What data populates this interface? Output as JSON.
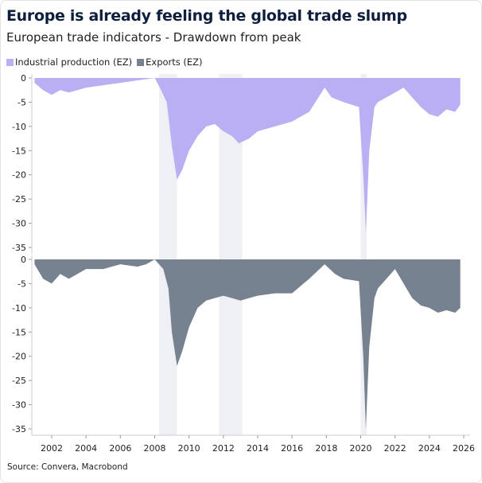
{
  "chart_data": {
    "type": "area",
    "title": "Europe is already feeling the global trade slump",
    "subtitle": "European trade indicators - Drawdown from peak",
    "source": "Source: Convera, Macrobond",
    "x_range": [
      2001,
      2026.5
    ],
    "x_ticks": [
      2002,
      2004,
      2006,
      2008,
      2010,
      2012,
      2014,
      2016,
      2018,
      2020,
      2022,
      2024,
      2026
    ],
    "y_range": [
      -37,
      0
    ],
    "y_ticks": [
      0,
      -5,
      -10,
      -15,
      -20,
      -25,
      -30,
      -35
    ],
    "legend_position": "top-left",
    "shaded_periods": [
      [
        2008.25,
        2009.3
      ],
      [
        2011.75,
        2013.1
      ],
      [
        2020.0,
        2020.35
      ]
    ],
    "series": [
      {
        "name": "Industrial production (EZ)",
        "color": "#b9aff2",
        "panel": "top",
        "x": [
          2001,
          2001.5,
          2002,
          2002.5,
          2003,
          2003.5,
          2004,
          2005,
          2006,
          2007,
          2008,
          2008.3,
          2008.7,
          2009.0,
          2009.3,
          2009.6,
          2010,
          2010.5,
          2011,
          2011.5,
          2012,
          2012.5,
          2012.9,
          2013.5,
          2014,
          2015,
          2016,
          2017,
          2017.9,
          2018.3,
          2019,
          2019.9,
          2020.15,
          2020.3,
          2020.5,
          2020.8,
          2021,
          2021.5,
          2022,
          2022.5,
          2023,
          2023.5,
          2024,
          2024.5,
          2025,
          2025.5,
          2025.8
        ],
        "y": [
          -1,
          -2.5,
          -3.5,
          -2.5,
          -3,
          -2.5,
          -2,
          -1.5,
          -1,
          -0.5,
          0,
          -2,
          -5,
          -14,
          -21,
          -19,
          -15,
          -12,
          -10,
          -9.5,
          -11,
          -12,
          -13.5,
          -12.5,
          -11,
          -10,
          -9,
          -7,
          -2,
          -4,
          -5,
          -6,
          -20,
          -32,
          -15,
          -6,
          -5,
          -4,
          -3,
          -2,
          -4,
          -6,
          -7.5,
          -8,
          -6.5,
          -7,
          -5.5
        ]
      },
      {
        "name": "Exports (EZ)",
        "color": "#76828f",
        "panel": "bottom",
        "x": [
          2001,
          2001.5,
          2002,
          2002.5,
          2003,
          2004,
          2005,
          2006,
          2007,
          2007.5,
          2008,
          2008.5,
          2008.8,
          2009.0,
          2009.3,
          2009.6,
          2010,
          2010.5,
          2011,
          2011.5,
          2012,
          2012.5,
          2013,
          2013.5,
          2014,
          2015,
          2016,
          2017,
          2017.9,
          2018.5,
          2019,
          2019.9,
          2020.15,
          2020.3,
          2020.5,
          2020.8,
          2021,
          2021.5,
          2022,
          2022.5,
          2023,
          2023.5,
          2024,
          2024.5,
          2025,
          2025.5,
          2025.8
        ],
        "y": [
          -1,
          -4,
          -5,
          -3,
          -4,
          -2,
          -2,
          -1,
          -1.5,
          -1,
          0,
          -2,
          -6,
          -15,
          -22,
          -19,
          -14,
          -10,
          -8.5,
          -8,
          -7.5,
          -8,
          -8.5,
          -8,
          -7.5,
          -7,
          -7,
          -4,
          -1,
          -3,
          -4,
          -4.5,
          -20,
          -35,
          -18,
          -8,
          -6,
          -4,
          -2,
          -5,
          -8,
          -9.5,
          -10,
          -11,
          -10.5,
          -11,
          -10
        ]
      }
    ]
  }
}
